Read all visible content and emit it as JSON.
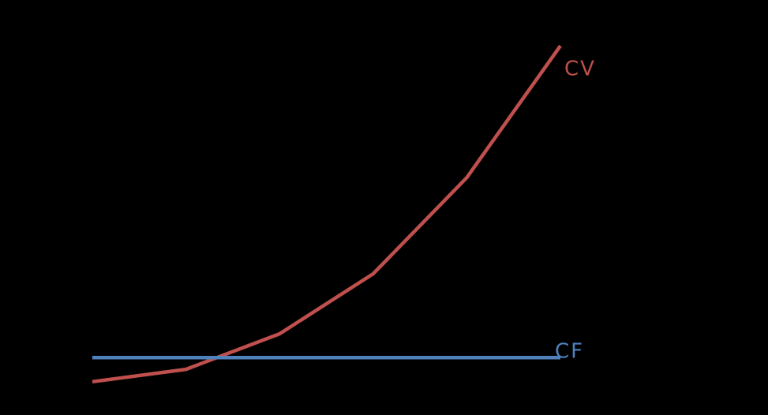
{
  "chart_data": {
    "type": "line",
    "categories": [
      null,
      null,
      null,
      null,
      null,
      null
    ],
    "series": [
      {
        "name": "CV",
        "color": "#c0504d",
        "values": [
          3.6,
          7.1,
          17.1,
          34,
          61.1,
          98.2
        ]
      },
      {
        "name": "CF",
        "color": "#4f81bd",
        "values": [
          10.4,
          10.4,
          10.4,
          10.4,
          10.4,
          10.4
        ]
      }
    ],
    "ylim": [
      0,
      100
    ]
  }
}
